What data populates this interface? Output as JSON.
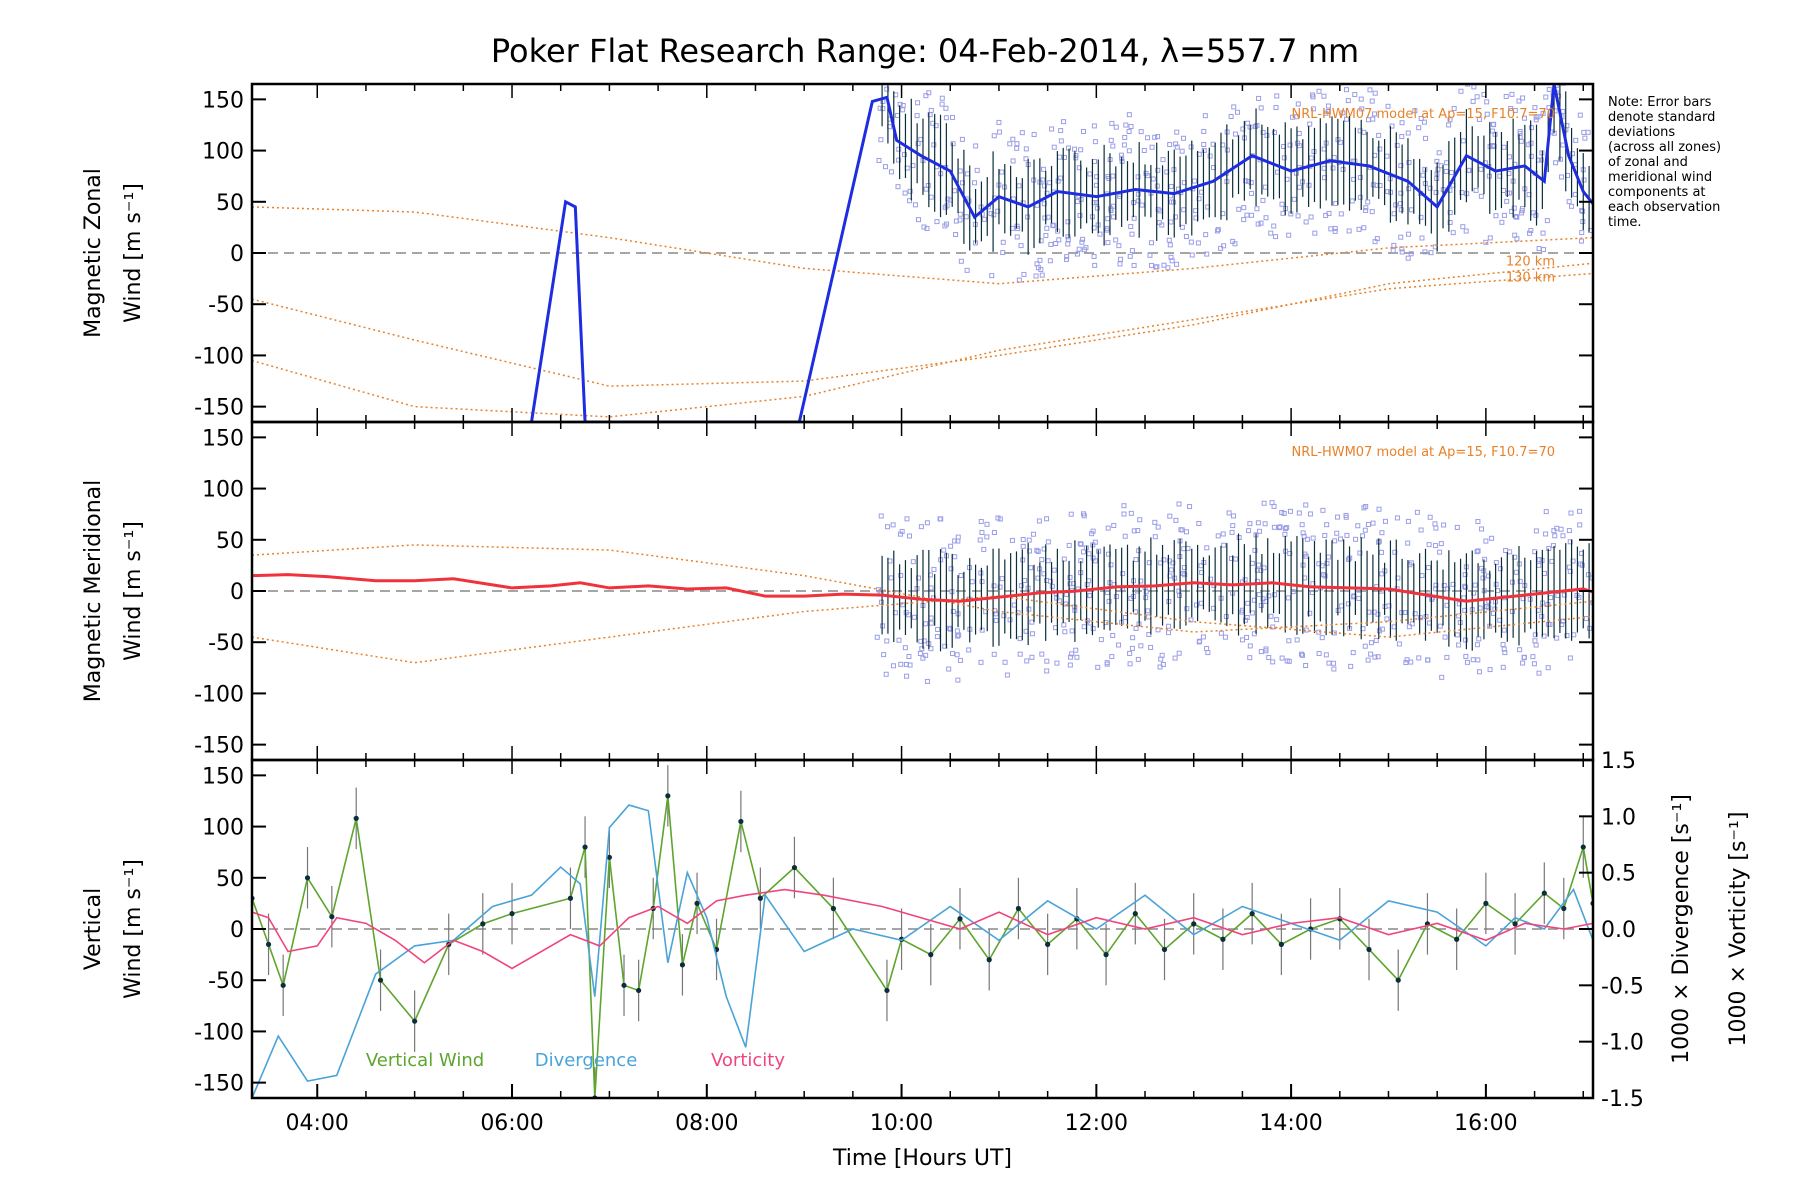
{
  "title": "Poker Flat Research Range: 04-Feb-2014, λ=557.7 nm",
  "note": [
    "Note: Error bars",
    "denote standard",
    "deviations",
    "(across all zones)",
    "of zonal and",
    "meridional wind",
    "components at",
    "each observation",
    "time."
  ],
  "colors": {
    "model": "#e8822a",
    "zonal_mean": "#1f2de0",
    "meridional_mean": "#f0323c",
    "vertical": "#5ea52e",
    "divergence": "#4aa3d8",
    "vorticity": "#f0457c",
    "scatter": "#9a9ee6",
    "errbar": "#0b2e3a"
  },
  "chart_data": [
    {
      "type": "line",
      "panel": "zonal",
      "ylabel": [
        "Magnetic Zonal",
        "Wind [m s⁻¹]"
      ],
      "ylim": [
        -165,
        165
      ],
      "yticks": [
        -150,
        -100,
        -50,
        0,
        50,
        100,
        150
      ],
      "xlim": [
        3.33,
        17.1
      ],
      "model_label": "NRL-HWM07 model at Ap=15, F10.7=70",
      "model_alt_labels": [
        "120 km",
        "130 km"
      ],
      "mean_series": {
        "name": "",
        "x": [
          6.2,
          6.55,
          6.65,
          6.75,
          8.95,
          9.7,
          9.85,
          9.95,
          10.2,
          10.5,
          10.75,
          11.0,
          11.3,
          11.6,
          12.0,
          12.4,
          12.8,
          13.2,
          13.6,
          14.0,
          14.4,
          14.8,
          15.2,
          15.5,
          15.8,
          16.1,
          16.4,
          16.6,
          16.7,
          16.85,
          17.0,
          17.1
        ],
        "y": [
          -165,
          50,
          45,
          -165,
          -165,
          148,
          152,
          110,
          95,
          80,
          35,
          55,
          45,
          60,
          55,
          62,
          58,
          70,
          95,
          80,
          90,
          85,
          70,
          45,
          95,
          80,
          85,
          70,
          165,
          95,
          60,
          48
        ]
      },
      "model_curves": [
        {
          "x": [
            3.33,
            5,
            7,
            9,
            11,
            13,
            15,
            17.1
          ],
          "y": [
            45,
            40,
            15,
            -15,
            -30,
            -15,
            5,
            15
          ]
        },
        {
          "x": [
            3.33,
            5,
            7,
            9,
            11,
            13,
            15,
            17.1
          ],
          "y": [
            -45,
            -85,
            -130,
            -125,
            -100,
            -70,
            -30,
            -10
          ]
        },
        {
          "x": [
            3.33,
            5,
            7,
            9,
            11,
            13,
            15,
            17.1
          ],
          "y": [
            -105,
            -150,
            -160,
            -140,
            -95,
            -65,
            -35,
            -20
          ]
        }
      ]
    },
    {
      "type": "line",
      "panel": "meridional",
      "ylabel": [
        "Magnetic Meridional",
        "Wind [m s⁻¹]"
      ],
      "ylim": [
        -165,
        165
      ],
      "yticks": [
        -150,
        -100,
        -50,
        0,
        50,
        100,
        150
      ],
      "xlim": [
        3.33,
        17.1
      ],
      "model_label": "NRL-HWM07 model at Ap=15, F10.7=70",
      "mean_series": {
        "name": "",
        "x": [
          3.33,
          3.7,
          4.1,
          4.6,
          5.0,
          5.4,
          5.8,
          6.0,
          6.4,
          6.7,
          7.0,
          7.4,
          7.8,
          8.2,
          8.6,
          9.0,
          9.4,
          9.8,
          10.2,
          10.6,
          11.0,
          11.4,
          11.8,
          12.2,
          12.6,
          13.0,
          13.4,
          13.8,
          14.2,
          14.6,
          15.0,
          15.4,
          15.8,
          16.2,
          16.6,
          17.0,
          17.1
        ],
        "y": [
          15,
          16,
          14,
          10,
          10,
          12,
          6,
          3,
          5,
          8,
          3,
          5,
          2,
          3,
          -5,
          -5,
          -3,
          -4,
          -8,
          -10,
          -6,
          -2,
          0,
          4,
          5,
          8,
          6,
          8,
          4,
          3,
          2,
          -4,
          -10,
          -6,
          -2,
          2,
          -1
        ]
      },
      "model_curves": [
        {
          "x": [
            3.33,
            5,
            7,
            9,
            11,
            13,
            15,
            17.1
          ],
          "y": [
            35,
            45,
            40,
            15,
            -20,
            -40,
            -30,
            -10
          ]
        },
        {
          "x": [
            3.33,
            5,
            7,
            9,
            11,
            13,
            15,
            17.1
          ],
          "y": [
            -45,
            -70,
            -45,
            -20,
            -5,
            -30,
            -45,
            -25
          ]
        }
      ]
    },
    {
      "type": "line",
      "panel": "vertical",
      "ylabel_left": [
        "Vertical",
        "Wind [m s⁻¹]"
      ],
      "ylabel_right_div": "1000 × Divergence [s⁻¹]",
      "ylabel_right_vort": "1000 × Vorticity [s⁻¹]",
      "ylim": [
        -165,
        165
      ],
      "yticks": [
        -150,
        -100,
        -50,
        0,
        50,
        100,
        150
      ],
      "y2lim": [
        -1.5,
        1.5
      ],
      "y2ticks": [
        -1.5,
        -1.0,
        -0.5,
        0.0,
        0.5,
        1.0,
        1.5
      ],
      "y2ticklabels": [
        "-1.5",
        "-1.0",
        "-0.5",
        "0.0",
        "0.5",
        "1.0",
        "1.5"
      ],
      "xlim": [
        3.33,
        17.1
      ],
      "xlabel": "Time [Hours UT]",
      "xticks": [
        4,
        6,
        8,
        10,
        12,
        14,
        16
      ],
      "xticklabels": [
        "04:00",
        "06:00",
        "08:00",
        "10:00",
        "12:00",
        "14:00",
        "16:00"
      ],
      "legend": [
        "Vertical Wind",
        "Divergence",
        "Vorticity"
      ],
      "series": [
        {
          "name": "Vertical Wind",
          "x": [
            3.33,
            3.5,
            3.65,
            3.9,
            4.15,
            4.4,
            4.65,
            5.0,
            5.35,
            5.7,
            6.0,
            6.6,
            6.75,
            6.85,
            7.0,
            7.15,
            7.3,
            7.45,
            7.6,
            7.75,
            7.9,
            8.1,
            8.35,
            8.55,
            8.9,
            9.3,
            9.85,
            10.0,
            10.3,
            10.6,
            10.9,
            11.2,
            11.5,
            11.8,
            12.1,
            12.4,
            12.7,
            13.0,
            13.3,
            13.6,
            13.9,
            14.2,
            14.5,
            14.8,
            15.1,
            15.4,
            15.7,
            16.0,
            16.3,
            16.6,
            16.8,
            17.0,
            17.1
          ],
          "y": [
            30,
            -15,
            -55,
            50,
            12,
            108,
            -50,
            -90,
            -15,
            5,
            15,
            30,
            80,
            -165,
            70,
            -55,
            -60,
            20,
            130,
            -35,
            25,
            -20,
            105,
            30,
            60,
            20,
            -60,
            -10,
            -25,
            10,
            -30,
            20,
            -15,
            10,
            -25,
            15,
            -20,
            5,
            -10,
            15,
            -15,
            0,
            10,
            -20,
            -50,
            5,
            -10,
            25,
            5,
            35,
            20,
            80,
            25
          ]
        },
        {
          "name": "Divergence",
          "x": [
            3.33,
            3.6,
            3.9,
            4.2,
            4.6,
            5.0,
            5.4,
            5.8,
            6.2,
            6.5,
            6.7,
            6.85,
            7.0,
            7.2,
            7.4,
            7.6,
            7.8,
            8.0,
            8.2,
            8.4,
            8.6,
            9.0,
            9.5,
            10.0,
            10.5,
            11.0,
            11.5,
            12.0,
            12.5,
            13.0,
            13.5,
            14.0,
            14.5,
            15.0,
            15.5,
            16.0,
            16.3,
            16.6,
            16.9,
            17.1
          ],
          "y": [
            -1.5,
            -0.95,
            -1.35,
            -1.3,
            -0.4,
            -0.15,
            -0.1,
            0.2,
            0.3,
            0.55,
            0.4,
            -0.6,
            0.9,
            1.1,
            1.05,
            -0.3,
            0.5,
            0.1,
            -0.6,
            -1.05,
            0.3,
            -0.2,
            0.0,
            -0.1,
            0.2,
            -0.1,
            0.25,
            0.0,
            0.3,
            -0.05,
            0.2,
            0.05,
            -0.1,
            0.25,
            0.15,
            -0.15,
            0.1,
            0.0,
            0.35,
            -0.1
          ]
        },
        {
          "name": "Vorticity",
          "x": [
            3.33,
            3.5,
            3.7,
            4.0,
            4.2,
            4.5,
            4.8,
            5.1,
            5.4,
            5.7,
            6.0,
            6.3,
            6.6,
            6.9,
            7.2,
            7.5,
            7.8,
            8.1,
            8.4,
            8.8,
            9.2,
            9.8,
            10.2,
            10.6,
            11.0,
            11.5,
            12.0,
            12.5,
            13.0,
            13.5,
            14.0,
            14.5,
            15.0,
            15.5,
            16.0,
            16.4,
            16.8,
            17.1
          ],
          "y": [
            0.15,
            0.1,
            -0.2,
            -0.15,
            0.1,
            0.05,
            -0.1,
            -0.3,
            -0.1,
            -0.2,
            -0.35,
            -0.2,
            -0.05,
            -0.15,
            0.1,
            0.2,
            0.05,
            0.25,
            0.3,
            0.35,
            0.3,
            0.2,
            0.1,
            0.0,
            0.15,
            -0.05,
            0.1,
            0.0,
            0.1,
            -0.05,
            0.05,
            0.1,
            -0.05,
            0.05,
            -0.1,
            0.05,
            0.0,
            0.05
          ]
        }
      ]
    }
  ]
}
